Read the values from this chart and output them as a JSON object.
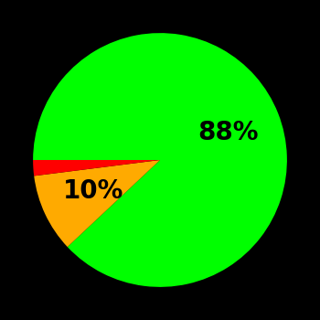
{
  "slices": [
    88,
    10,
    2
  ],
  "colors": [
    "#00ff00",
    "#ffaa00",
    "#ff0000"
  ],
  "labels": [
    "88%",
    "10%",
    ""
  ],
  "background_color": "#000000",
  "label_fontsize": 20,
  "label_fontweight": "bold",
  "startangle": 180,
  "figsize": [
    3.5,
    3.5
  ],
  "dpi": 100
}
